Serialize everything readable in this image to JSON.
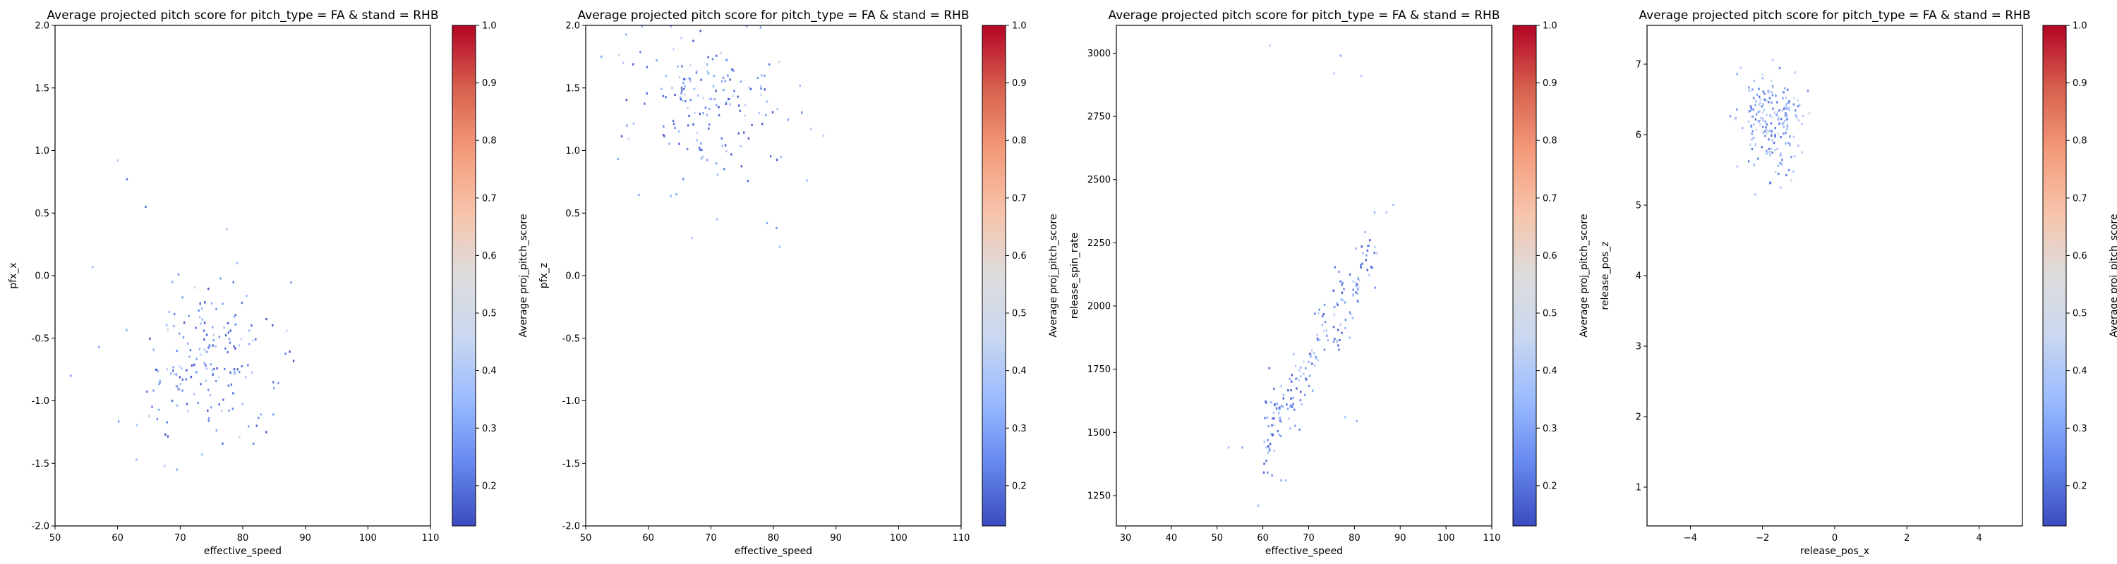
{
  "colormap": {
    "name": "coolwarm",
    "stops": [
      "#3b4cc0",
      "#6788ee",
      "#9abbff",
      "#c9d7f0",
      "#dddddd",
      "#f7c4ab",
      "#f49a7b",
      "#d6604d",
      "#b40426"
    ]
  },
  "chart_data": [
    {
      "type": "scatter",
      "title": "Average projected pitch score for pitch_type = FA & stand = RHB",
      "xlabel": "effective_speed",
      "ylabel": "pfx_x",
      "xlim": [
        50,
        110
      ],
      "ylim": [
        -2.0,
        2.0
      ],
      "xticks": [
        "50",
        "60",
        "70",
        "80",
        "90",
        "100",
        "110"
      ],
      "yticks": [
        "-2.0",
        "-1.5",
        "-1.0",
        "-0.5",
        "0.0",
        "0.5",
        "1.0",
        "1.5",
        "2.0"
      ],
      "colorbar": {
        "label": "Average proj_pitch_score",
        "range": [
          0.13,
          1.0
        ],
        "ticks": [
          "0.2",
          "0.3",
          "0.4",
          "0.5",
          "0.6",
          "0.7",
          "0.8",
          "0.9",
          "1.0"
        ]
      },
      "grid": false,
      "cloud": {
        "center": [
          75,
          -0.65
        ],
        "spread": [
          5.5,
          0.3
        ],
        "count": 180,
        "score_range": [
          0.15,
          0.45
        ],
        "seed": 11
      },
      "points": [
        {
          "x": 52.5,
          "y": -0.8,
          "c": 0.25
        },
        {
          "x": 56,
          "y": 0.07,
          "c": 0.35
        },
        {
          "x": 57,
          "y": -0.57,
          "c": 0.3
        },
        {
          "x": 60,
          "y": 0.92,
          "c": 0.4
        },
        {
          "x": 61.5,
          "y": 0.77,
          "c": 0.2
        },
        {
          "x": 64.5,
          "y": 0.55,
          "c": 0.18
        },
        {
          "x": 63,
          "y": -1.47,
          "c": 0.35
        },
        {
          "x": 67.5,
          "y": -1.52,
          "c": 0.4
        },
        {
          "x": 69.5,
          "y": -1.55,
          "c": 0.3
        },
        {
          "x": 73.5,
          "y": -1.43,
          "c": 0.35
        },
        {
          "x": 77.5,
          "y": 0.37,
          "c": 0.4
        },
        {
          "x": 85,
          "y": -0.9,
          "c": 0.3
        },
        {
          "x": 87,
          "y": -0.44,
          "c": 0.4
        }
      ]
    },
    {
      "type": "scatter",
      "title": "Average projected pitch score for pitch_type = FA & stand = RHB",
      "xlabel": "effective_speed",
      "ylabel": "pfx_z",
      "xlim": [
        50,
        110
      ],
      "ylim": [
        -2.0,
        2.0
      ],
      "xticks": [
        "50",
        "60",
        "70",
        "80",
        "90",
        "100",
        "110"
      ],
      "yticks": [
        "-2.0",
        "-1.5",
        "-1.0",
        "-0.5",
        "0.0",
        "0.5",
        "1.0",
        "1.5",
        "2.0"
      ],
      "colorbar": {
        "label": "Average proj_pitch_score",
        "range": [
          0.13,
          1.0
        ],
        "ticks": [
          "0.2",
          "0.3",
          "0.4",
          "0.5",
          "0.6",
          "0.7",
          "0.8",
          "0.9",
          "1.0"
        ]
      },
      "grid": false,
      "cloud": {
        "center": [
          70,
          1.35
        ],
        "spread": [
          6,
          0.28
        ],
        "count": 170,
        "score_range": [
          0.15,
          0.45
        ],
        "seed": 23
      },
      "points": [
        {
          "x": 52.5,
          "y": 1.75,
          "c": 0.3
        },
        {
          "x": 56,
          "y": 1.7,
          "c": 0.4
        },
        {
          "x": 59,
          "y": 1.99,
          "c": 0.35
        },
        {
          "x": 64.5,
          "y": 0.65,
          "c": 0.3
        },
        {
          "x": 67,
          "y": 0.3,
          "c": 0.4
        },
        {
          "x": 71,
          "y": 0.45,
          "c": 0.35
        },
        {
          "x": 79,
          "y": 0.42,
          "c": 0.3
        },
        {
          "x": 80.5,
          "y": 0.38,
          "c": 0.25
        },
        {
          "x": 81,
          "y": 0.23,
          "c": 0.35
        },
        {
          "x": 86,
          "y": 1.17,
          "c": 0.4
        },
        {
          "x": 88,
          "y": 1.12,
          "c": 0.4
        }
      ]
    },
    {
      "type": "scatter",
      "title": "Average projected pitch score for pitch_type = FA & stand = RHB",
      "xlabel": "effective_speed",
      "ylabel": "release_spin_rate",
      "xlim": [
        28,
        110
      ],
      "ylim": [
        1130,
        3110
      ],
      "xticks": [
        "30",
        "40",
        "50",
        "60",
        "70",
        "80",
        "90",
        "100",
        "110"
      ],
      "yticks": [
        "1250",
        "1500",
        "1750",
        "2000",
        "2250",
        "2500",
        "2750",
        "3000"
      ],
      "colorbar": {
        "label": "Average proj_pitch_score",
        "range": [
          0.13,
          1.0
        ],
        "ticks": [
          "0.2",
          "0.3",
          "0.4",
          "0.5",
          "0.6",
          "0.7",
          "0.8",
          "0.9",
          "1.0"
        ]
      },
      "grid": false,
      "cloud": {
        "trend": {
          "x0": 62,
          "y0": 1530,
          "slope": 30
        },
        "x_range": [
          60,
          85
        ],
        "spread": [
          0,
          80
        ],
        "count": 190,
        "score_range": [
          0.15,
          0.45
        ],
        "seed": 37
      },
      "points": [
        {
          "x": 52.5,
          "y": 1440,
          "c": 0.35
        },
        {
          "x": 55.5,
          "y": 1440,
          "c": 0.3
        },
        {
          "x": 59,
          "y": 1210,
          "c": 0.35
        },
        {
          "x": 61.5,
          "y": 3030,
          "c": 0.4
        },
        {
          "x": 62,
          "y": 1330,
          "c": 0.25
        },
        {
          "x": 64,
          "y": 1310,
          "c": 0.3
        },
        {
          "x": 65,
          "y": 1310,
          "c": 0.35
        },
        {
          "x": 75.5,
          "y": 2920,
          "c": 0.4
        },
        {
          "x": 77,
          "y": 2990,
          "c": 0.3
        },
        {
          "x": 81.5,
          "y": 2910,
          "c": 0.4
        },
        {
          "x": 78,
          "y": 1560,
          "c": 0.35
        },
        {
          "x": 80.5,
          "y": 1545,
          "c": 0.3
        },
        {
          "x": 87,
          "y": 2370,
          "c": 0.4
        },
        {
          "x": 88.5,
          "y": 2400,
          "c": 0.35
        }
      ]
    },
    {
      "type": "scatter",
      "title": "Average projected pitch score for pitch_type = FA & stand = RHB",
      "xlabel": "release_pos_x",
      "ylabel": "release_pos_z",
      "xlim": [
        -5.2,
        5.2
      ],
      "ylim": [
        0.45,
        7.55
      ],
      "xticks": [
        "−4",
        "−2",
        "0",
        "2",
        "4"
      ],
      "yticks": [
        "1",
        "2",
        "3",
        "4",
        "5",
        "6",
        "7"
      ],
      "colorbar": {
        "label": "Average proj_pitch_score",
        "range": [
          0.13,
          1.0
        ],
        "ticks": [
          "0.2",
          "0.3",
          "0.4",
          "0.5",
          "0.6",
          "0.7",
          "0.8",
          "0.9",
          "1.0"
        ]
      },
      "grid": false,
      "cloud": {
        "center": [
          -1.75,
          6.2
        ],
        "spread": [
          0.45,
          0.35
        ],
        "count": 200,
        "score_range": [
          0.2,
          0.5
        ],
        "seed": 53
      },
      "points": [
        {
          "x": -2.7,
          "y": 5.55,
          "c": 0.4
        },
        {
          "x": -2.2,
          "y": 5.15,
          "c": 0.35
        },
        {
          "x": -1.5,
          "y": 5.25,
          "c": 0.4
        },
        {
          "x": -1.2,
          "y": 5.35,
          "c": 0.45
        },
        {
          "x": -0.9,
          "y": 5.75,
          "c": 0.4
        },
        {
          "x": -0.7,
          "y": 6.3,
          "c": 0.45
        },
        {
          "x": -2.6,
          "y": 6.95,
          "c": 0.4
        },
        {
          "x": -2.0,
          "y": 6.85,
          "c": 0.45
        }
      ]
    }
  ]
}
